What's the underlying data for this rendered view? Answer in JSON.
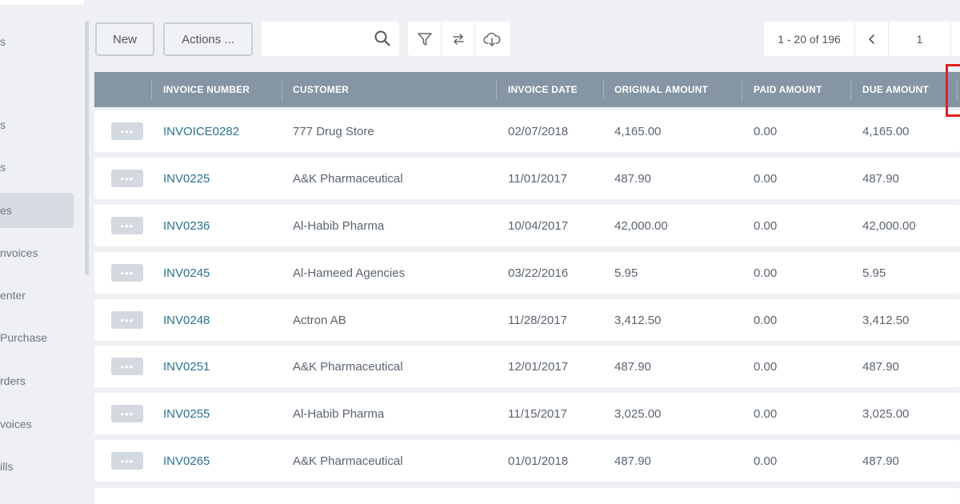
{
  "sidebar": {
    "items": [
      {
        "label": "s"
      },
      {
        "label": "s"
      },
      {
        "label": "es"
      },
      {
        "label": "nvoices"
      },
      {
        "label": "enter"
      },
      {
        "label": " Purchase"
      },
      {
        "label": "rders"
      },
      {
        "label": "voices"
      },
      {
        "label": "ills"
      }
    ],
    "active_index": 2
  },
  "toolbar": {
    "new_label": "New",
    "actions_label": "Actions ...",
    "search_placeholder": "",
    "icons": [
      "filter-icon",
      "swap-icon",
      "cloud-download-icon"
    ]
  },
  "pager": {
    "range": "1 - 20 of 196",
    "page": "1"
  },
  "table": {
    "headers": [
      "INVOICE NUMBER",
      "CUSTOMER",
      "INVOICE DATE",
      "ORIGINAL AMOUNT",
      "PAID AMOUNT",
      "DUE AMOUNT"
    ],
    "rows": [
      {
        "invoice": "INVOICE0282",
        "customer": "777 Drug Store",
        "date": "02/07/2018",
        "original": "4,165.00",
        "paid": "0.00",
        "due": "4,165.00"
      },
      {
        "invoice": "INV0225",
        "customer": "A&K Pharmaceutical",
        "date": "11/01/2017",
        "original": "487.90",
        "paid": "0.00",
        "due": "487.90"
      },
      {
        "invoice": "INV0236",
        "customer": "Al-Habib Pharma",
        "date": "10/04/2017",
        "original": "42,000.00",
        "paid": "0.00",
        "due": "42,000.00"
      },
      {
        "invoice": "INV0245",
        "customer": "Al-Hameed Agencies",
        "date": "03/22/2016",
        "original": "5.95",
        "paid": "0.00",
        "due": "5.95"
      },
      {
        "invoice": "INV0248",
        "customer": "Actron AB",
        "date": "11/28/2017",
        "original": "3,412.50",
        "paid": "0.00",
        "due": "3,412.50"
      },
      {
        "invoice": "INV0251",
        "customer": "A&K Pharmaceutical",
        "date": "12/01/2017",
        "original": "487.90",
        "paid": "0.00",
        "due": "487.90"
      },
      {
        "invoice": "INV0255",
        "customer": "Al-Habib Pharma",
        "date": "11/15/2017",
        "original": "3,025.00",
        "paid": "0.00",
        "due": "3,025.00"
      },
      {
        "invoice": "INV0265",
        "customer": "A&K Pharmaceutical",
        "date": "01/01/2018",
        "original": "487.90",
        "paid": "0.00",
        "due": "487.90"
      }
    ],
    "row_menu_label": "•••"
  },
  "colors": {
    "header_bg": "#8595a4",
    "link": "#2a7290",
    "highlight": "#e02020"
  }
}
